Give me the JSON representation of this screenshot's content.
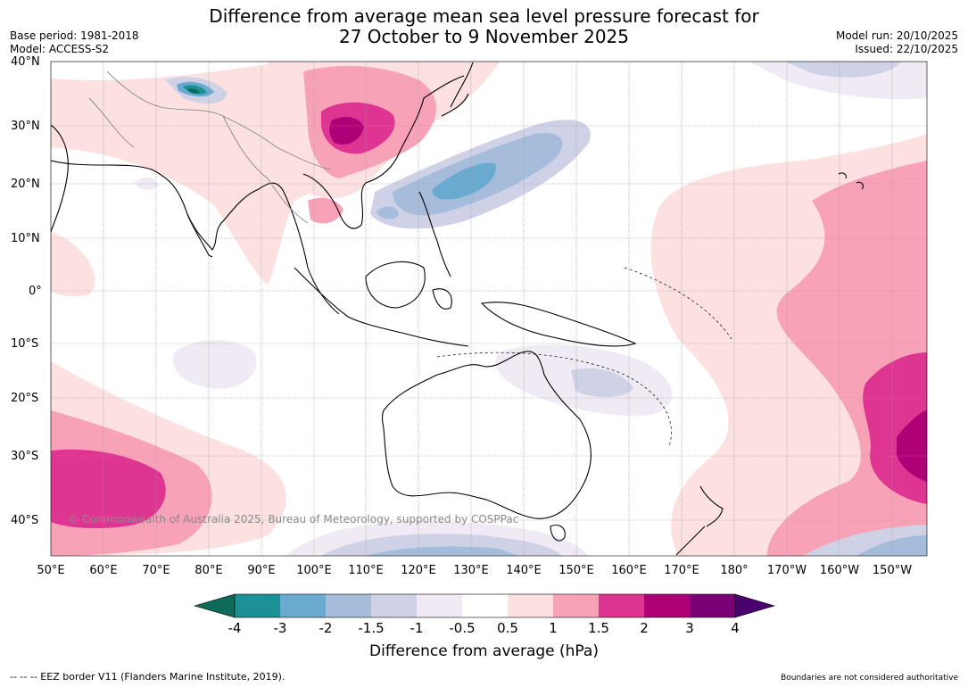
{
  "title": {
    "line1": "Difference from average mean sea level pressure forecast for",
    "line2": "27 October to 9 November 2025"
  },
  "meta": {
    "base_period": "Base period: 1981-2018",
    "model": "Model: ACCESS-S2",
    "model_run": "Model run: 20/10/2025",
    "issued": "Issued: 22/10/2025"
  },
  "lat_labels": [
    "40°N",
    "30°N",
    "20°N",
    "10°N",
    "0°",
    "10°S",
    "20°S",
    "30°S",
    "40°S"
  ],
  "lon_labels": [
    "50°E",
    "60°E",
    "70°E",
    "80°E",
    "90°E",
    "100°E",
    "110°E",
    "120°E",
    "130°E",
    "140°E",
    "150°E",
    "160°E",
    "170°E",
    "180°",
    "170°W",
    "160°W",
    "150°W"
  ],
  "colorbar": {
    "tick_labels": [
      "-4",
      "-3",
      "-2",
      "-1.5",
      "-1",
      "-0.5",
      "0.5",
      "1",
      "1.5",
      "2",
      "3",
      "4"
    ],
    "colors": [
      "#0e6b5a",
      "#1b9196",
      "#6aaad0",
      "#a6bcdb",
      "#cfd2e6",
      "#efeaf3",
      "#ffffff",
      "#fde0e0",
      "#f8a2b8",
      "#de3592",
      "#ae0077",
      "#790077",
      "#4b006f"
    ],
    "title": "Difference from average (hPa)"
  },
  "copyright": "© Commonwealth of Australia 2025, Bureau of Meteorology, supported by COSPPac",
  "footer": {
    "eez_legend": "--  --  -- EEZ border V11 (Flanders Marine Institute, 2019).",
    "disclaimer": "Boundaries are not considered authoritative"
  }
}
